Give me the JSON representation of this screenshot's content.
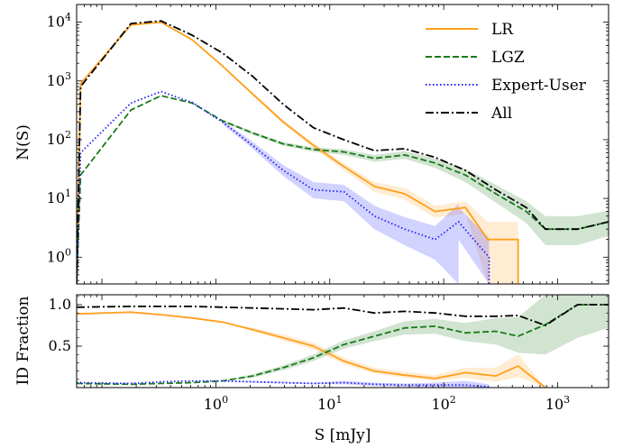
{
  "chart_data": [
    {
      "type": "line",
      "panel": "top",
      "xscale": "log",
      "yscale": "log",
      "xlim": [
        0.06,
        2800
      ],
      "ylim": [
        0.35,
        20000
      ],
      "xlabel": "",
      "ylabel": "N(S)",
      "yticks": [
        {
          "value": 1,
          "base": "10",
          "exp": "0"
        },
        {
          "value": 10,
          "base": "10",
          "exp": "1"
        },
        {
          "value": 100,
          "base": "10",
          "exp": "2"
        },
        {
          "value": 1000,
          "base": "10",
          "exp": "3"
        },
        {
          "value": 10000,
          "base": "10",
          "exp": "4"
        }
      ],
      "legend_position": "top-right",
      "series": [
        {
          "name": "LR",
          "color": "#ff9f1c",
          "dash": "solid",
          "x": [
            0.06,
            0.065,
            0.18,
            0.33,
            0.62,
            1.14,
            2.1,
            3.9,
            7.2,
            13.3,
            24.6,
            45.5,
            84,
            155,
            244,
            244,
            450,
            450
          ],
          "y": [
            0.35,
            900,
            9000,
            10000,
            5000,
            1800,
            600,
            200,
            80,
            35,
            16,
            12,
            6,
            7,
            2,
            2,
            2,
            0.35
          ],
          "band_low": [
            null,
            null,
            null,
            null,
            null,
            null,
            560,
            185,
            72,
            30,
            13,
            9.5,
            4.7,
            5.5,
            0.35,
            0.35,
            0.35,
            null
          ],
          "band_high": [
            null,
            null,
            null,
            null,
            null,
            null,
            640,
            215,
            88,
            40,
            19,
            15,
            7.5,
            9,
            4,
            4,
            4,
            null
          ]
        },
        {
          "name": "LGZ",
          "color": "#1a7a1a",
          "dash": "dashed",
          "x": [
            0.06,
            0.065,
            0.18,
            0.33,
            0.62,
            1.14,
            2.1,
            3.9,
            7.2,
            13.3,
            24.6,
            45.5,
            84,
            155,
            287,
            530,
            780,
            1500,
            2800
          ],
          "y": [
            0.35,
            25,
            320,
            560,
            420,
            210,
            130,
            85,
            68,
            62,
            48,
            55,
            40,
            25,
            12,
            6,
            3,
            3,
            4
          ],
          "band_low": [
            null,
            null,
            null,
            null,
            null,
            200,
            122,
            79,
            62,
            55,
            42,
            47,
            33,
            19,
            8.5,
            3.8,
            1.6,
            1.6,
            2.3
          ],
          "band_high": [
            null,
            null,
            null,
            null,
            null,
            220,
            138,
            91,
            74,
            69,
            55,
            64,
            48,
            32,
            17,
            9,
            5,
            5,
            6.2
          ]
        },
        {
          "name": "Expert-User",
          "color": "#1f1fff",
          "dash": "dotted",
          "x": [
            0.06,
            0.065,
            0.18,
            0.33,
            0.62,
            1.14,
            2.1,
            3.9,
            7.2,
            13.3,
            24.6,
            45.5,
            84,
            135,
            135,
            250,
            250
          ],
          "y": [
            0.35,
            60,
            420,
            660,
            430,
            200,
            80,
            30,
            14,
            13,
            5,
            3,
            2,
            4,
            4,
            1,
            0.35
          ],
          "band_low": [
            null,
            null,
            null,
            null,
            null,
            185,
            70,
            24,
            10,
            9,
            3,
            1.6,
            0.9,
            0.35,
            2,
            0.35,
            null
          ],
          "band_high": [
            null,
            null,
            null,
            null,
            null,
            215,
            92,
            37,
            19,
            17,
            7.5,
            4.8,
            3.4,
            8,
            7,
            2.1,
            null
          ]
        },
        {
          "name": "All",
          "color": "#000000",
          "dash": "dashdot",
          "x": [
            0.06,
            0.065,
            0.18,
            0.33,
            0.62,
            1.14,
            2.1,
            3.9,
            7.2,
            13.3,
            24.6,
            45.5,
            84,
            155,
            287,
            530,
            780,
            1500,
            2800
          ],
          "y": [
            0.35,
            800,
            9500,
            10500,
            6000,
            3000,
            1200,
            400,
            160,
            100,
            65,
            70,
            50,
            30,
            14,
            7,
            3,
            3,
            4
          ],
          "band_low": [],
          "band_high": []
        }
      ]
    },
    {
      "type": "line",
      "panel": "bottom",
      "xscale": "log",
      "yscale": "linear",
      "xlim": [
        0.06,
        2800
      ],
      "ylim": [
        0,
        1.12
      ],
      "xlabel": "S [mJy]",
      "ylabel": "ID Fraction",
      "xticks": [
        {
          "value": 1,
          "base": "10",
          "exp": "0"
        },
        {
          "value": 10,
          "base": "10",
          "exp": "1"
        },
        {
          "value": 100,
          "base": "10",
          "exp": "2"
        },
        {
          "value": 1000,
          "base": "10",
          "exp": "3"
        }
      ],
      "yticks": [
        {
          "value": 0.5,
          "label": "0.5"
        },
        {
          "value": 1.0,
          "label": "1.0"
        }
      ],
      "series": [
        {
          "name": "LR",
          "color": "#ff9f1c",
          "dash": "solid",
          "x": [
            0.06,
            0.18,
            0.33,
            0.62,
            1.14,
            2.1,
            3.9,
            7.2,
            13.3,
            24.6,
            45.5,
            84,
            155,
            287,
            450,
            780
          ],
          "y": [
            0.89,
            0.91,
            0.88,
            0.84,
            0.79,
            0.7,
            0.6,
            0.5,
            0.32,
            0.2,
            0.15,
            0.11,
            0.18,
            0.14,
            0.26,
            0.0
          ],
          "band_low": [
            0.89,
            0.91,
            0.88,
            0.84,
            0.79,
            0.68,
            0.57,
            0.46,
            0.28,
            0.17,
            0.12,
            0.08,
            0.12,
            0.07,
            0.13,
            0.0
          ],
          "band_high": [
            0.89,
            0.91,
            0.88,
            0.84,
            0.79,
            0.72,
            0.64,
            0.54,
            0.36,
            0.24,
            0.19,
            0.15,
            0.24,
            0.24,
            0.4,
            0.0
          ]
        },
        {
          "name": "LGZ",
          "color": "#1a7a1a",
          "dash": "dashed",
          "x": [
            0.06,
            0.18,
            0.33,
            0.62,
            1.14,
            2.1,
            3.9,
            7.2,
            13.3,
            24.6,
            45.5,
            84,
            155,
            287,
            450,
            780,
            1500,
            2800
          ],
          "y": [
            0.05,
            0.04,
            0.05,
            0.06,
            0.08,
            0.14,
            0.24,
            0.36,
            0.52,
            0.62,
            0.72,
            0.74,
            0.66,
            0.68,
            0.62,
            0.76,
            1.0,
            1.0
          ],
          "band_low": [
            0.05,
            0.04,
            0.05,
            0.06,
            0.08,
            0.12,
            0.21,
            0.32,
            0.47,
            0.56,
            0.64,
            0.65,
            0.56,
            0.52,
            0.42,
            0.4,
            0.6,
            0.72
          ],
          "band_high": [
            0.05,
            0.04,
            0.05,
            0.06,
            0.08,
            0.16,
            0.27,
            0.4,
            0.57,
            0.68,
            0.8,
            0.83,
            0.78,
            0.84,
            0.85,
            1.12,
            1.12,
            1.12
          ]
        },
        {
          "name": "Expert-User",
          "color": "#1f1fff",
          "dash": "dotted",
          "x": [
            0.06,
            0.18,
            0.33,
            0.62,
            1.14,
            2.1,
            3.9,
            7.2,
            13.3,
            24.6,
            45.5,
            84,
            155,
            250
          ],
          "y": [
            0.06,
            0.05,
            0.07,
            0.08,
            0.08,
            0.07,
            0.06,
            0.05,
            0.06,
            0.04,
            0.03,
            0.03,
            0.03,
            0.01
          ],
          "band_low": [
            0.06,
            0.05,
            0.07,
            0.08,
            0.08,
            0.06,
            0.05,
            0.04,
            0.04,
            0.02,
            0.01,
            0.0,
            0.0,
            0.0
          ],
          "band_high": [
            0.06,
            0.05,
            0.07,
            0.08,
            0.08,
            0.08,
            0.07,
            0.06,
            0.08,
            0.06,
            0.05,
            0.06,
            0.08,
            0.04
          ]
        },
        {
          "name": "All",
          "color": "#000000",
          "dash": "dashdot",
          "x": [
            0.06,
            0.18,
            0.33,
            0.62,
            1.14,
            2.1,
            3.9,
            7.2,
            13.3,
            24.6,
            45.5,
            84,
            155,
            287,
            450,
            780,
            1500,
            2800
          ],
          "y": [
            0.97,
            0.98,
            0.98,
            0.98,
            0.97,
            0.96,
            0.95,
            0.94,
            0.96,
            0.9,
            0.92,
            0.9,
            0.86,
            0.86,
            0.87,
            0.75,
            1.0,
            1.0
          ],
          "band_low": [],
          "band_high": []
        }
      ]
    }
  ]
}
